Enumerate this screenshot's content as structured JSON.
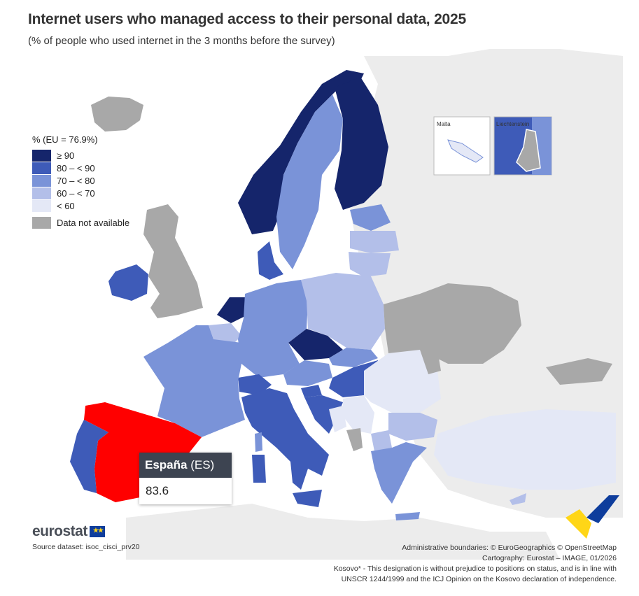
{
  "title": "Internet users who managed access to their personal data, 2025",
  "subtitle": "(% of people who used internet in the 3 months before the survey)",
  "legend": {
    "title": "% (EU = 76.9%)",
    "classes": [
      {
        "label": "≥ 90",
        "color": "#15256b"
      },
      {
        "label": "80 – < 90",
        "color": "#3e5bb8"
      },
      {
        "label": "70 – < 80",
        "color": "#7a93d8"
      },
      {
        "label": "60 – < 70",
        "color": "#b3bfe9"
      },
      {
        "label": "< 60",
        "color": "#e4e8f6"
      }
    ],
    "not_available": {
      "label": "Data not available",
      "color": "#a8a8a8"
    }
  },
  "tooltip": {
    "country": "España",
    "code": "(ES)",
    "value": "83.6"
  },
  "insets": {
    "malta": "Malta",
    "liechtenstein": "Liechtenstein"
  },
  "branding": {
    "logo": "eurostat"
  },
  "source": "Source dataset: isoc_cisci_prv20",
  "credits": [
    "Administrative boundaries: © EuroGeographics © OpenStreetMap",
    "Cartography: Eurostat – IMAGE, 01/2026",
    "Kosovo* - This designation is without prejudice to positions on status, and is in line with",
    "UNSCR 1244/1999 and the ICJ Opinion on the Kosovo declaration of independence."
  ],
  "colors": {
    "sea": "#ffffff",
    "non_eu": "#ececec",
    "highlight": "#ff0000",
    "tooltip_header": "#3d4451"
  },
  "countries": [
    {
      "name": "Spain",
      "class": "highlight"
    },
    {
      "name": "Portugal",
      "class": "80 – < 90"
    },
    {
      "name": "France",
      "class": "70 – < 80"
    },
    {
      "name": "Belgium",
      "class": "60 – < 70"
    },
    {
      "name": "Netherlands",
      "class": "≥ 90"
    },
    {
      "name": "Luxembourg",
      "class": "70 – < 80"
    },
    {
      "name": "Germany",
      "class": "70 – < 80"
    },
    {
      "name": "Denmark",
      "class": "80 – < 90"
    },
    {
      "name": "Norway",
      "class": "≥ 90"
    },
    {
      "name": "Sweden",
      "class": "70 – < 80"
    },
    {
      "name": "Finland",
      "class": "≥ 90"
    },
    {
      "name": "Estonia",
      "class": "70 – < 80"
    },
    {
      "name": "Latvia",
      "class": "60 – < 70"
    },
    {
      "name": "Lithuania",
      "class": "60 – < 70"
    },
    {
      "name": "Poland",
      "class": "60 – < 70"
    },
    {
      "name": "Czechia",
      "class": "≥ 90"
    },
    {
      "name": "Slovakia",
      "class": "70 – < 80"
    },
    {
      "name": "Austria",
      "class": "70 – < 80"
    },
    {
      "name": "Switzerland",
      "class": "80 – < 90"
    },
    {
      "name": "Italy",
      "class": "80 – < 90"
    },
    {
      "name": "Slovenia",
      "class": "80 – < 90"
    },
    {
      "name": "Hungary",
      "class": "80 – < 90"
    },
    {
      "name": "Croatia",
      "class": "80 – < 90"
    },
    {
      "name": "Romania",
      "class": "< 60"
    },
    {
      "name": "Bulgaria",
      "class": "60 – < 70"
    },
    {
      "name": "Greece",
      "class": "70 – < 80"
    },
    {
      "name": "Türkiye",
      "class": "< 60"
    },
    {
      "name": "Ireland",
      "class": "80 – < 90"
    },
    {
      "name": "Malta",
      "class": "< 60"
    },
    {
      "name": "Liechtenstein",
      "class": "n/a"
    },
    {
      "name": "Ukraine",
      "class": "n/a"
    },
    {
      "name": "United Kingdom",
      "class": "n/a"
    },
    {
      "name": "Iceland",
      "class": "n/a"
    }
  ]
}
